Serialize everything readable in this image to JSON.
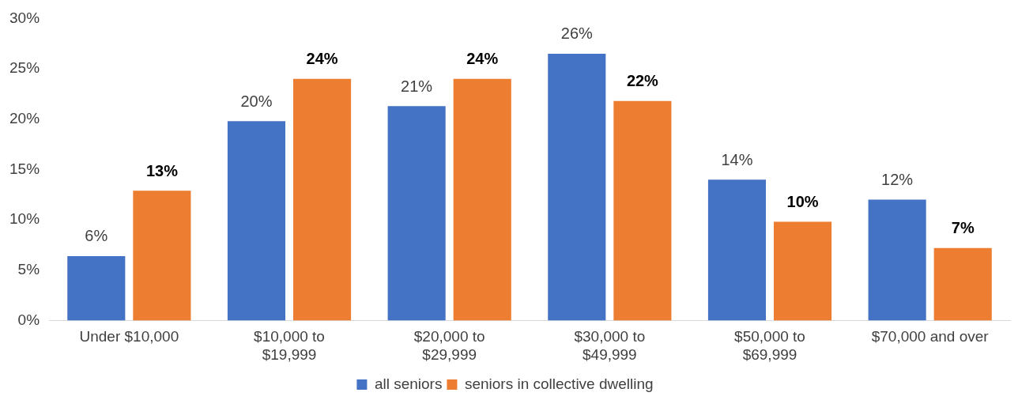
{
  "chart_data": {
    "type": "bar",
    "categories": [
      "Under $10,000",
      "$10,000 to $19,999",
      "$20,000 to $29,999",
      "$30,000 to $49,999",
      "$50,000 to $69,999",
      "$70,000 and over"
    ],
    "series": [
      {
        "name": "all seniors",
        "color": "#4472c4",
        "values": [
          6.4,
          19.8,
          21.3,
          26.5,
          14,
          12
        ],
        "value_labels": [
          "6%",
          "20%",
          "21%",
          "26%",
          "14%",
          "12%"
        ]
      },
      {
        "name": "seniors in collective dwelling",
        "color": "#ed7d31",
        "values": [
          12.9,
          24,
          24,
          21.8,
          9.8,
          7.2
        ],
        "value_labels": [
          "13%",
          "24%",
          "24%",
          "22%",
          "10%",
          "7%"
        ]
      }
    ],
    "ylim": [
      0,
      30
    ],
    "yticks": [
      {
        "value": 0,
        "label": "0%"
      },
      {
        "value": 5,
        "label": "5%"
      },
      {
        "value": 10,
        "label": "10%"
      },
      {
        "value": 15,
        "label": "15%"
      },
      {
        "value": 20,
        "label": "20%"
      },
      {
        "value": 25,
        "label": "25%"
      },
      {
        "value": 30,
        "label": "30%"
      }
    ],
    "grid": false,
    "legend": "bottom"
  }
}
